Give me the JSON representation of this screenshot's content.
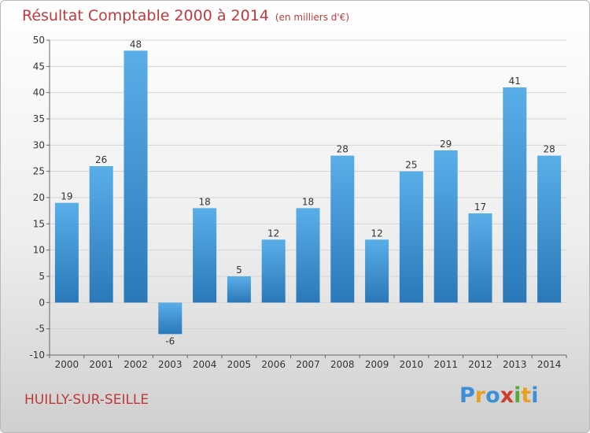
{
  "title": "Résultat Comptable 2000 à 2014",
  "subtitle": "(en milliers d'€)",
  "location": "HUILLY-SUR-SEILLE",
  "logo": {
    "text": "Proxiti"
  },
  "colors": {
    "bar_top": "#5aaee8",
    "bar_bottom": "#2a78b8",
    "title": "#c0393b"
  },
  "chart_data": {
    "type": "bar",
    "categories": [
      "2000",
      "2001",
      "2002",
      "2003",
      "2004",
      "2005",
      "2006",
      "2007",
      "2008",
      "2009",
      "2010",
      "2011",
      "2012",
      "2013",
      "2014"
    ],
    "values": [
      19,
      26,
      48,
      -6,
      18,
      5,
      12,
      18,
      28,
      12,
      25,
      29,
      17,
      41,
      28
    ],
    "ylim": [
      -10,
      50
    ],
    "yticks": [
      -10,
      -5,
      0,
      5,
      10,
      15,
      20,
      25,
      30,
      35,
      40,
      45,
      50
    ],
    "grid": true,
    "data_labels": true
  }
}
